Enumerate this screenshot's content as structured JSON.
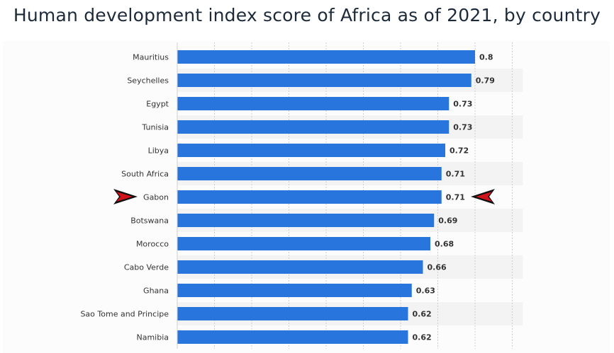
{
  "title": "Human development index score of Africa as of 2021, by country",
  "chart_data": {
    "type": "bar",
    "orientation": "horizontal",
    "categories": [
      "Mauritius",
      "Seychelles",
      "Egypt",
      "Tunisia",
      "Libya",
      "South Africa",
      "Gabon",
      "Botswana",
      "Morocco",
      "Cabo Verde",
      "Ghana",
      "Sao Tome and Principe",
      "Namibia"
    ],
    "values": [
      0.8,
      0.79,
      0.73,
      0.73,
      0.72,
      0.71,
      0.71,
      0.69,
      0.68,
      0.66,
      0.63,
      0.62,
      0.62
    ],
    "value_labels": [
      "0.8",
      "0.79",
      "0.73",
      "0.73",
      "0.72",
      "0.71",
      "0.71",
      "0.69",
      "0.68",
      "0.66",
      "0.63",
      "0.62",
      "0.62"
    ],
    "title": "",
    "xlabel": "",
    "ylabel": "",
    "xlim": [
      0,
      0.9
    ],
    "grid": true,
    "bar_color": "#2876dd",
    "highlighted_category": "Gabon",
    "marker_color": "#d0121b"
  }
}
